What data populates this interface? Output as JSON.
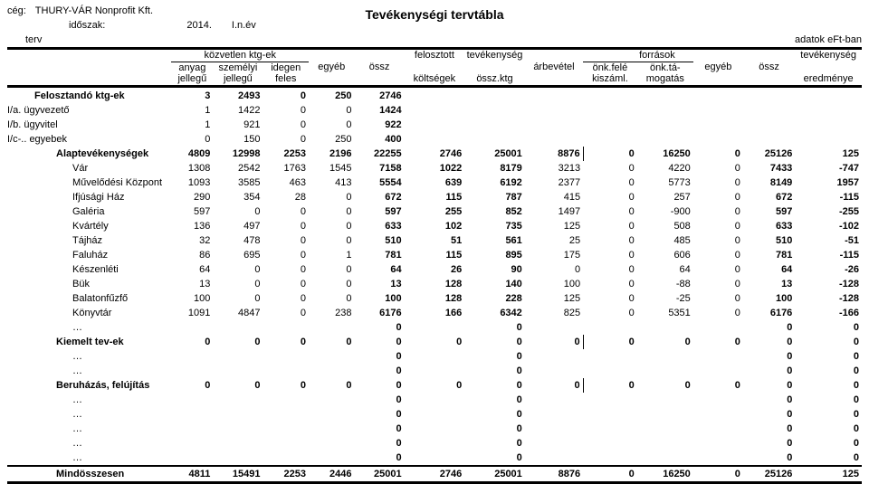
{
  "meta": {
    "company_label": "cég:",
    "company": "THURY-VÁR Nonprofit Kft.",
    "period_label": "időszak:",
    "period_year": "2014.",
    "period_half": "I.n.év",
    "plan": "terv",
    "title": "Tevékenységi tervtábla",
    "units": "adatok eFt-ban"
  },
  "headers": {
    "group_direct": "közvetlen ktg-ek",
    "group_sources": "források",
    "anyag1": "anyag",
    "anyag2": "jellegű",
    "szem1": "személyi",
    "szem2": "jellegű",
    "idegen1": "idegen",
    "idegen2": "feles",
    "egyeb": "egyéb",
    "ossz": "össz",
    "felosztott1": "felosztott",
    "felosztott2": "költségek",
    "tev1": "tevékenység",
    "tev2": "össz.ktg",
    "arbevetel": "árbevétel",
    "onk_fele1": "önk.felé",
    "onk_fele2": "kiszáml.",
    "onk_tam1": "önk.tá-",
    "onk_tam2": "mogatás",
    "egyeb_s": "egyéb",
    "ossz_s": "össz",
    "eredm1": "tevékenység",
    "eredm2": "eredménye"
  },
  "cols": {
    "label_w": 158,
    "widths": [
      40,
      48,
      44,
      44,
      48,
      58,
      58,
      56,
      52,
      54,
      48,
      50,
      64
    ]
  },
  "rows": [
    {
      "label": "Felosztandó ktg-ek",
      "indent": 1,
      "bold": true,
      "v": [
        3,
        2493,
        0,
        250,
        2746,
        null,
        null,
        null,
        null,
        null,
        null,
        null,
        null
      ]
    },
    {
      "label": "I/a.   ügyvezető",
      "indent": 0,
      "v": [
        1,
        1422,
        0,
        0,
        1424,
        null,
        null,
        null,
        null,
        null,
        null,
        null,
        null
      ]
    },
    {
      "label": "I/b.   ügyvitel",
      "indent": 0,
      "v": [
        1,
        921,
        0,
        0,
        922,
        null,
        null,
        null,
        null,
        null,
        null,
        null,
        null
      ]
    },
    {
      "label": "I/c-.. egyebek",
      "indent": 0,
      "v": [
        0,
        150,
        0,
        250,
        400,
        null,
        null,
        null,
        null,
        null,
        null,
        null,
        null
      ]
    },
    {
      "label": "Alaptevékenységek",
      "indent": 2,
      "bold": true,
      "v": [
        4809,
        12998,
        2253,
        2196,
        22255,
        2746,
        25001,
        8876,
        0,
        16250,
        0,
        25126,
        125
      ],
      "brd": 8
    },
    {
      "label": "Vár",
      "indent": 3,
      "v": [
        1308,
        2542,
        1763,
        1545,
        7158,
        1022,
        8179,
        3213,
        0,
        4220,
        0,
        7433,
        -747
      ]
    },
    {
      "label": "Művelődési Központ",
      "indent": 3,
      "v": [
        1093,
        3585,
        463,
        413,
        5554,
        639,
        6192,
        2377,
        0,
        5773,
        0,
        8149,
        1957
      ]
    },
    {
      "label": "Ifjúsági Ház",
      "indent": 3,
      "v": [
        290,
        354,
        28,
        0,
        672,
        115,
        787,
        415,
        0,
        257,
        0,
        672,
        -115
      ]
    },
    {
      "label": "Galéria",
      "indent": 3,
      "v": [
        597,
        0,
        0,
        0,
        597,
        255,
        852,
        1497,
        0,
        -900,
        0,
        597,
        -255
      ]
    },
    {
      "label": "Kvártély",
      "indent": 3,
      "v": [
        136,
        497,
        0,
        0,
        633,
        102,
        735,
        125,
        0,
        508,
        0,
        633,
        -102
      ]
    },
    {
      "label": "Tájház",
      "indent": 3,
      "v": [
        32,
        478,
        0,
        0,
        510,
        51,
        561,
        25,
        0,
        485,
        0,
        510,
        -51
      ]
    },
    {
      "label": "Faluház",
      "indent": 3,
      "v": [
        86,
        695,
        0,
        1,
        781,
        115,
        895,
        175,
        0,
        606,
        0,
        781,
        -115
      ]
    },
    {
      "label": "Készenléti",
      "indent": 3,
      "v": [
        64,
        0,
        0,
        0,
        64,
        26,
        90,
        0,
        0,
        64,
        0,
        64,
        -26
      ]
    },
    {
      "label": "Bük",
      "indent": 3,
      "v": [
        13,
        0,
        0,
        0,
        13,
        128,
        140,
        100,
        0,
        -88,
        0,
        13,
        -128
      ]
    },
    {
      "label": "Balatonfűzfő",
      "indent": 3,
      "v": [
        100,
        0,
        0,
        0,
        100,
        128,
        228,
        125,
        0,
        -25,
        0,
        100,
        -128
      ]
    },
    {
      "label": "Könyvtár",
      "indent": 3,
      "v": [
        1091,
        4847,
        0,
        238,
        6176,
        166,
        6342,
        825,
        0,
        5351,
        0,
        6176,
        -166
      ]
    },
    {
      "label": "…",
      "indent": 3,
      "v": [
        null,
        null,
        null,
        null,
        0,
        null,
        0,
        null,
        null,
        null,
        null,
        0,
        0
      ]
    },
    {
      "label": "Kiemelt tev-ek",
      "indent": 2,
      "bold": true,
      "v": [
        0,
        0,
        0,
        0,
        0,
        0,
        0,
        0,
        0,
        0,
        0,
        0,
        0
      ],
      "brd": 8
    },
    {
      "label": "…",
      "indent": 3,
      "v": [
        null,
        null,
        null,
        null,
        0,
        null,
        0,
        null,
        null,
        null,
        null,
        0,
        0
      ]
    },
    {
      "label": "…",
      "indent": 3,
      "v": [
        null,
        null,
        null,
        null,
        0,
        null,
        0,
        null,
        null,
        null,
        null,
        0,
        0
      ]
    },
    {
      "label": "Beruházás, felújítás",
      "indent": 2,
      "bold": true,
      "v": [
        0,
        0,
        0,
        0,
        0,
        0,
        0,
        0,
        0,
        0,
        0,
        0,
        0
      ],
      "brd": 8
    },
    {
      "label": "…",
      "indent": 3,
      "v": [
        null,
        null,
        null,
        null,
        0,
        null,
        0,
        null,
        null,
        null,
        null,
        0,
        0
      ]
    },
    {
      "label": "…",
      "indent": 3,
      "v": [
        null,
        null,
        null,
        null,
        0,
        null,
        0,
        null,
        null,
        null,
        null,
        0,
        0
      ]
    },
    {
      "label": "…",
      "indent": 3,
      "v": [
        null,
        null,
        null,
        null,
        0,
        null,
        0,
        null,
        null,
        null,
        null,
        0,
        0
      ]
    },
    {
      "label": "…",
      "indent": 3,
      "v": [
        null,
        null,
        null,
        null,
        0,
        null,
        0,
        null,
        null,
        null,
        null,
        0,
        0
      ]
    },
    {
      "label": "…",
      "indent": 3,
      "v": [
        null,
        null,
        null,
        null,
        0,
        null,
        0,
        null,
        null,
        null,
        null,
        0,
        0
      ]
    }
  ],
  "total": {
    "label": "Mindösszesen",
    "v": [
      4811,
      15491,
      2253,
      2446,
      25001,
      2746,
      25001,
      8876,
      0,
      16250,
      0,
      25126,
      125
    ]
  },
  "bold_cols": [
    4,
    5,
    6,
    11,
    12
  ]
}
